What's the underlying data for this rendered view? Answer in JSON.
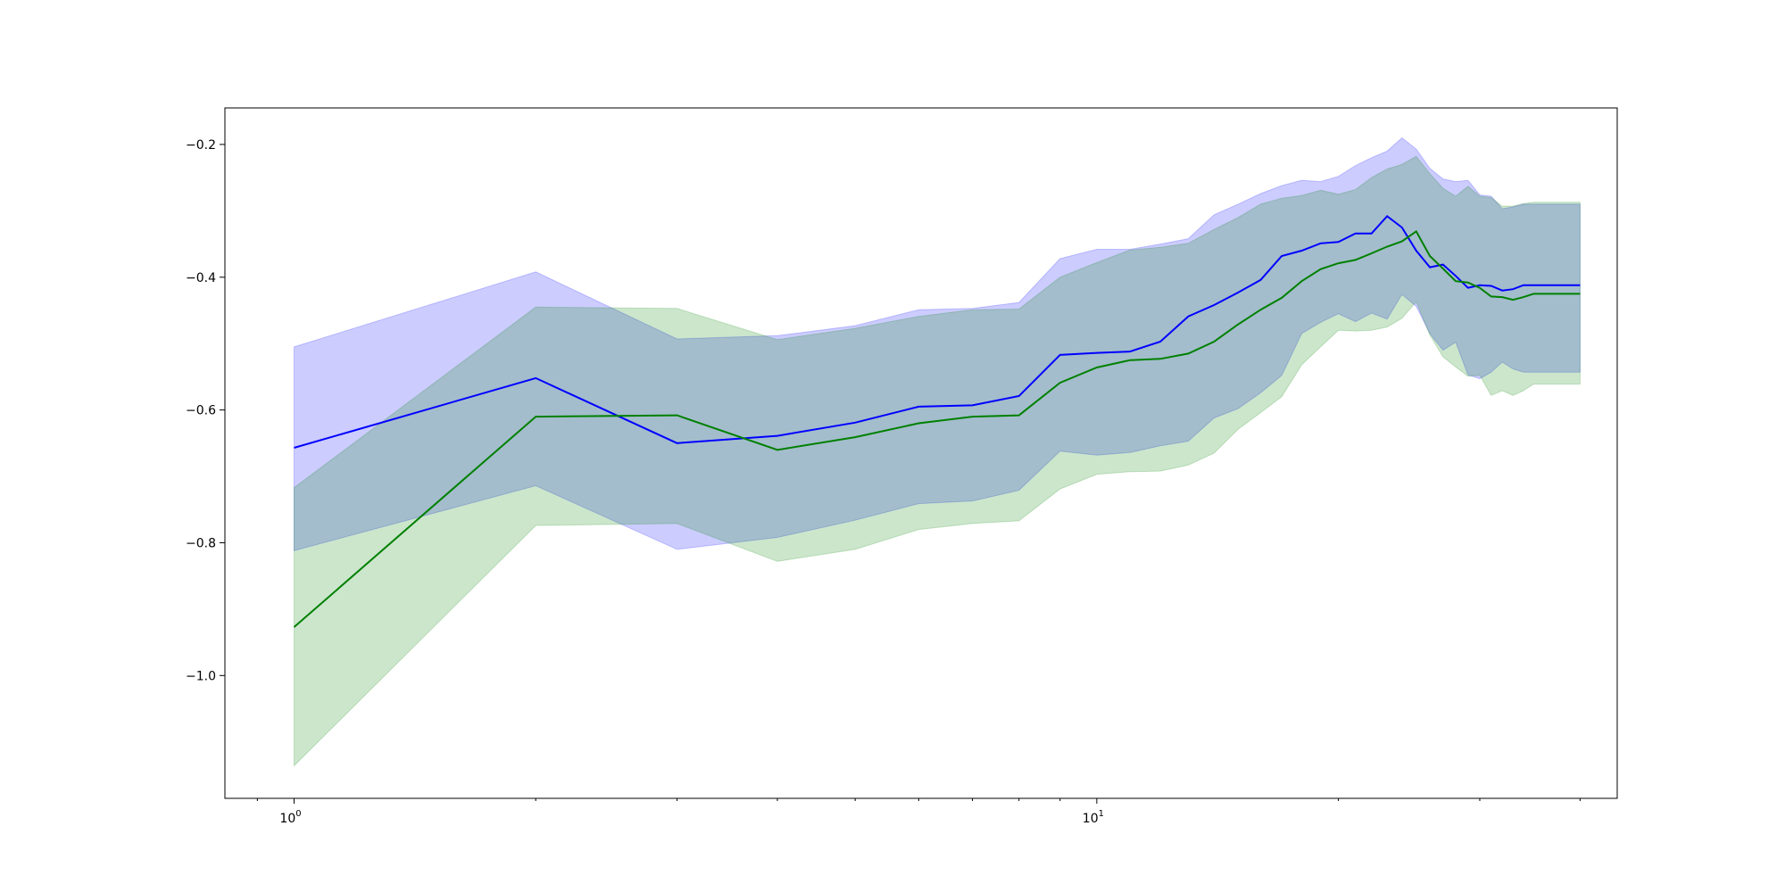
{
  "chart_data": {
    "type": "line",
    "title": "",
    "xlabel": "",
    "ylabel": "",
    "x_scale": "log",
    "xlim": [
      0.82,
      44.5
    ],
    "ylim": [
      -1.185,
      -0.145
    ],
    "grid": false,
    "x_ticks": [
      {
        "value": 1,
        "base": "10",
        "exp": "0"
      },
      {
        "value": 10,
        "base": "10",
        "exp": "1"
      }
    ],
    "y_ticks": [
      {
        "value": -0.2,
        "label": "−0.2"
      },
      {
        "value": -0.4,
        "label": "−0.4"
      },
      {
        "value": -0.6,
        "label": "−0.6"
      },
      {
        "value": -0.8,
        "label": "−0.8"
      },
      {
        "value": -1.0,
        "label": "−1.0"
      }
    ],
    "x": [
      1,
      2,
      3,
      4,
      5,
      6,
      7,
      8,
      9,
      10,
      11,
      12,
      13,
      14,
      15,
      16,
      17,
      18,
      19,
      20,
      21,
      22,
      23,
      24,
      25,
      26,
      27,
      28,
      29,
      30,
      31,
      32,
      33,
      34,
      35,
      36,
      37,
      38,
      39,
      40
    ],
    "series": [
      {
        "color": "#0000ff",
        "band_color": "#0000ff",
        "values": [
          -0.657,
          -0.552,
          -0.65,
          -0.639,
          -0.619,
          -0.595,
          -0.593,
          -0.579,
          -0.517,
          -0.514,
          -0.512,
          -0.497,
          -0.459,
          -0.442,
          -0.423,
          -0.404,
          -0.368,
          -0.36,
          -0.349,
          -0.347,
          -0.334,
          -0.334,
          -0.308,
          -0.325,
          -0.36,
          -0.385,
          -0.381,
          -0.398,
          -0.416,
          -0.412,
          -0.413,
          -0.42,
          -0.418,
          -0.412,
          -0.412,
          -0.412,
          -0.412,
          -0.412,
          -0.412,
          -0.412
        ],
        "upper": [
          -0.505,
          -0.392,
          -0.493,
          -0.488,
          -0.473,
          -0.449,
          -0.447,
          -0.438,
          -0.372,
          -0.358,
          -0.358,
          -0.35,
          -0.342,
          -0.306,
          -0.29,
          -0.274,
          -0.262,
          -0.254,
          -0.256,
          -0.248,
          -0.232,
          -0.22,
          -0.21,
          -0.19,
          -0.207,
          -0.236,
          -0.252,
          -0.256,
          -0.254,
          -0.276,
          -0.278,
          -0.297,
          -0.294,
          -0.29,
          -0.29,
          -0.29,
          -0.29,
          -0.29,
          -0.29,
          -0.29
        ],
        "lower": [
          -0.812,
          -0.714,
          -0.81,
          -0.792,
          -0.766,
          -0.741,
          -0.737,
          -0.721,
          -0.662,
          -0.668,
          -0.664,
          -0.654,
          -0.647,
          -0.612,
          -0.598,
          -0.574,
          -0.548,
          -0.485,
          -0.468,
          -0.455,
          -0.467,
          -0.454,
          -0.463,
          -0.426,
          -0.444,
          -0.485,
          -0.51,
          -0.498,
          -0.547,
          -0.553,
          -0.543,
          -0.528,
          -0.538,
          -0.543,
          -0.543,
          -0.543,
          -0.543,
          -0.543,
          -0.543,
          -0.543
        ]
      },
      {
        "color": "#008000",
        "band_color": "#008000",
        "values": [
          -0.927,
          -0.61,
          -0.608,
          -0.66,
          -0.641,
          -0.62,
          -0.61,
          -0.608,
          -0.559,
          -0.536,
          -0.525,
          -0.523,
          -0.515,
          -0.497,
          -0.471,
          -0.449,
          -0.431,
          -0.406,
          -0.388,
          -0.379,
          -0.374,
          -0.364,
          -0.354,
          -0.346,
          -0.331,
          -0.368,
          -0.387,
          -0.406,
          -0.408,
          -0.416,
          -0.429,
          -0.43,
          -0.434,
          -0.43,
          -0.425,
          -0.425,
          -0.425,
          -0.425,
          -0.425,
          -0.425
        ],
        "upper": [
          -0.717,
          -0.445,
          -0.447,
          -0.494,
          -0.477,
          -0.459,
          -0.449,
          -0.448,
          -0.4,
          -0.378,
          -0.359,
          -0.355,
          -0.349,
          -0.328,
          -0.31,
          -0.29,
          -0.281,
          -0.277,
          -0.269,
          -0.275,
          -0.268,
          -0.25,
          -0.237,
          -0.23,
          -0.218,
          -0.244,
          -0.266,
          -0.278,
          -0.263,
          -0.278,
          -0.28,
          -0.293,
          -0.293,
          -0.289,
          -0.287,
          -0.287,
          -0.287,
          -0.287,
          -0.287,
          -0.287
        ],
        "lower": [
          -1.136,
          -0.774,
          -0.771,
          -0.828,
          -0.81,
          -0.78,
          -0.771,
          -0.767,
          -0.719,
          -0.697,
          -0.693,
          -0.692,
          -0.683,
          -0.665,
          -0.629,
          -0.604,
          -0.58,
          -0.532,
          -0.505,
          -0.48,
          -0.481,
          -0.48,
          -0.475,
          -0.462,
          -0.437,
          -0.487,
          -0.52,
          -0.535,
          -0.549,
          -0.548,
          -0.578,
          -0.571,
          -0.578,
          -0.571,
          -0.561,
          -0.561,
          -0.561,
          -0.561,
          -0.561,
          -0.561
        ]
      }
    ]
  }
}
